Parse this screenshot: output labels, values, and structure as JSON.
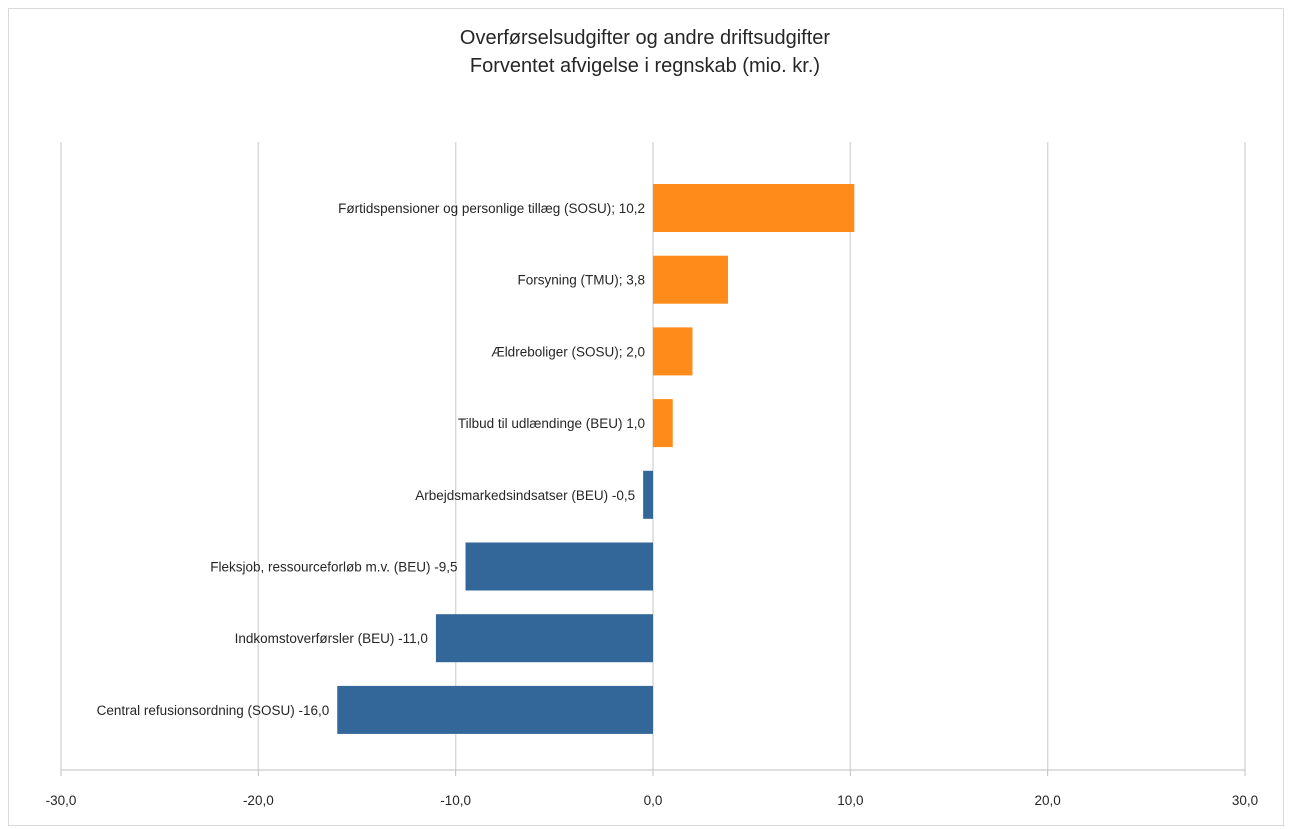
{
  "chart_data": {
    "type": "bar",
    "orientation": "horizontal",
    "title": "Overførselsudgifter og andre driftsudgifter",
    "subtitle": "Forventet afvigelse i regnskab (mio. kr.)",
    "categories": [
      "Førtidspensioner og personlige tillæg (SOSU); 10,2",
      "Forsyning (TMU); 3,8",
      "Ældreboliger (SOSU); 2,0",
      "Tilbud til udlændinge (BEU) 1,0",
      "Arbejdsmarkedsindsatser (BEU) -0,5",
      "Fleksjob, ressourceforløb m.v. (BEU) -9,5",
      "Indkomstoverførsler (BEU) -11,0",
      "Central refusionsordning (SOSU) -16,0"
    ],
    "values": [
      10.2,
      3.8,
      2.0,
      1.0,
      -0.5,
      -9.5,
      -11.0,
      -16.0
    ],
    "xlim": [
      -30,
      30
    ],
    "xticks": [
      -30,
      -20,
      -10,
      0,
      10,
      20,
      30
    ],
    "xtick_labels": [
      "-30,0",
      "-20,0",
      "-10,0",
      "0,0",
      "10,0",
      "20,0",
      "30,0"
    ],
    "grid": "vertical",
    "legend": "none",
    "colors": {
      "positive": "#ff8c1a",
      "negative": "#336699",
      "grid": "#d9d9d9",
      "axis": "#bfbfbf"
    }
  }
}
